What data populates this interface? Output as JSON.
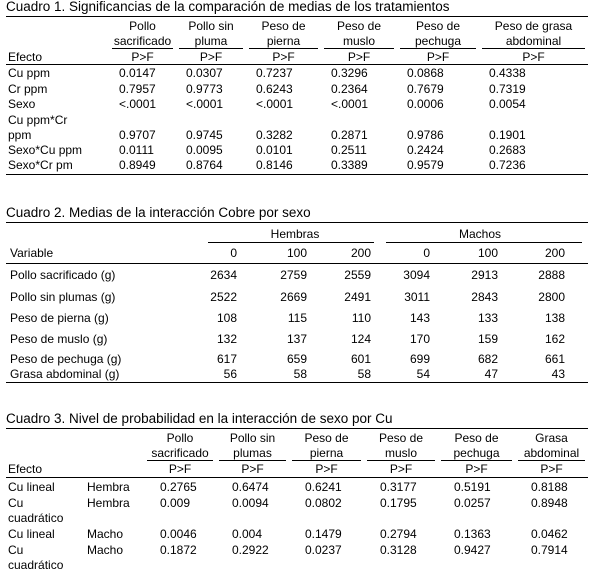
{
  "table1": {
    "title": "Cuadro 1. Significancias de la comparación de medias de los tratamientos",
    "effect_label": "Efecto",
    "columns": [
      {
        "line1": "Pollo",
        "line2": "sacrificado"
      },
      {
        "line1": "Pollo sin",
        "line2": "pluma"
      },
      {
        "line1": "Peso de",
        "line2": "pierna"
      },
      {
        "line1": "Peso de",
        "line2": "muslo"
      },
      {
        "line1": "Peso de",
        "line2": "pechuga"
      },
      {
        "line1": "Peso de grasa",
        "line2": "abdominal"
      }
    ],
    "subheader": "P>F",
    "rows": [
      {
        "effect": "Cu ppm",
        "values": [
          "0.0147",
          "0.0307",
          "0.7237",
          "0.3296",
          "0.0868",
          "0.4338"
        ]
      },
      {
        "effect": "Cr ppm",
        "values": [
          "0.7957",
          "0.9773",
          "0.6243",
          "0.2364",
          "0.7679",
          "0.7319"
        ]
      },
      {
        "effect": "Sexo",
        "values": [
          "<.0001",
          "<.0001",
          "<.0001",
          "<.0001",
          "0.0006",
          "0.0054"
        ]
      },
      {
        "effect": "Cu ppm*Cr",
        "effect2": "ppm",
        "values": [
          "0.9707",
          "0.9745",
          "0.3282",
          "0.2871",
          "0.9786",
          "0.1901"
        ]
      },
      {
        "effect": "Sexo*Cu ppm",
        "values": [
          "0.0111",
          "0.0095",
          "0.0101",
          "0.2511",
          "0.2424",
          "0.2683"
        ]
      },
      {
        "effect": "Sexo*Cr pm",
        "values": [
          "0.8949",
          "0.8764",
          "0.8146",
          "0.3389",
          "0.9579",
          "0.7236"
        ]
      }
    ]
  },
  "table2": {
    "title": "Cuadro 2. Medias de la interacción Cobre por sexo",
    "group1": "Hembras",
    "group2": "Machos",
    "variable_label": "Variable",
    "levels": [
      "0",
      "100",
      "200",
      "0",
      "100",
      "200"
    ],
    "rows": [
      {
        "name": "Pollo sacrificado (g)",
        "values": [
          "2634",
          "2759",
          "2559",
          "3094",
          "2913",
          "2888"
        ]
      },
      {
        "name": "Pollo sin plumas (g)",
        "values": [
          "2522",
          "2669",
          "2491",
          "3011",
          "2843",
          "2800"
        ]
      },
      {
        "name": "Peso de pierna (g)",
        "values": [
          "108",
          "115",
          "110",
          "143",
          "133",
          "138"
        ]
      },
      {
        "name": "Peso de muslo (g)",
        "values": [
          "132",
          "137",
          "124",
          "170",
          "159",
          "162"
        ]
      },
      {
        "name": "Peso de pechuga (g)",
        "values": [
          "617",
          "659",
          "601",
          "699",
          "682",
          "661"
        ]
      },
      {
        "name": "Grasa abdominal (g)",
        "values": [
          "56",
          "58",
          "58",
          "54",
          "47",
          "43"
        ]
      }
    ]
  },
  "table3": {
    "title": "Cuadro 3. Nivel de probabilidad en la interacción de sexo por Cu",
    "effect_label": "Efecto",
    "columns": [
      {
        "line1": "Pollo",
        "line2": "sacrificado"
      },
      {
        "line1": "Pollo sin",
        "line2": "plumas"
      },
      {
        "line1": "Peso de",
        "line2": "pierna"
      },
      {
        "line1": "Peso de",
        "line2": "muslo"
      },
      {
        "line1": "Peso de",
        "line2": "pechuga"
      },
      {
        "line1": "Grasa",
        "line2": "abdominal"
      }
    ],
    "subheader": "P>F",
    "rows": [
      {
        "effect": "Cu lineal",
        "sex": "Hembra",
        "values": [
          "0.2765",
          "0.6474",
          "0.6241",
          "0.3177",
          "0.5191",
          "0.8188"
        ]
      },
      {
        "effect": "Cu",
        "effect2": "cuadrático",
        "sex": "Hembra",
        "values": [
          "0.009",
          "0.0094",
          "0.0802",
          "0.1795",
          "0.0257",
          "0.8948"
        ]
      },
      {
        "effect": "Cu lineal",
        "sex": "Macho",
        "values": [
          "0.0046",
          "0.004",
          "0.1479",
          "0.2794",
          "0.1363",
          "0.0462"
        ]
      },
      {
        "effect": "Cu",
        "effect2": "cuadrático",
        "sex": "Macho",
        "values": [
          "0.1872",
          "0.2922",
          "0.0237",
          "0.3128",
          "0.9427",
          "0.7914"
        ]
      }
    ]
  }
}
